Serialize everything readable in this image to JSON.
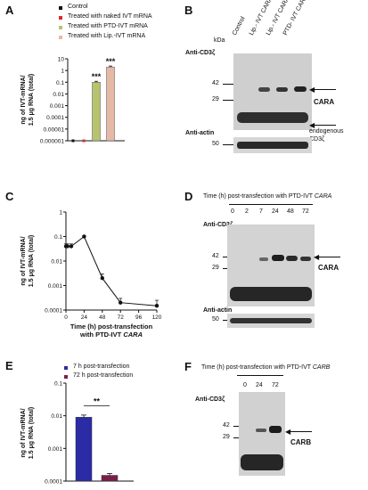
{
  "panels": {
    "A": {
      "label": "A",
      "legend": [
        {
          "text": "Control",
          "color": "#111111"
        },
        {
          "text": "Treated with  naked  IVT mRNA",
          "color": "#e0282a"
        },
        {
          "text": "Treated with PTD-IVT mRNA",
          "color": "#b7c36e"
        },
        {
          "text": "Treated with Lip.-IVT  mRNA",
          "color": "#e6b9a6"
        }
      ],
      "ylabel_line1": "ng of IVT-mRNA/",
      "ylabel_line2": "1.5 μg RNA (total)",
      "significance": "***"
    },
    "B": {
      "label": "B",
      "lanes": [
        "Control",
        "Lip.- IVT CARA",
        "Lip.- IVT CARA",
        "PTD- IVT CARA"
      ],
      "kda_title": "kDa",
      "antibody_top": "Anti-CD3ζ",
      "antibody_bottom": "Anti-actin",
      "markers": [
        "42",
        "29",
        "50"
      ],
      "band_label": "CARA",
      "endogenous_label_line1": "endogenous",
      "endogenous_label_line2": "CD3ζ"
    },
    "C": {
      "label": "C",
      "ylabel_line1": "ng of IVT-mRNA/",
      "ylabel_line2": "1.5 μg RNA (total)",
      "xlabel_line1": "Time  (h)  post-transfection",
      "xlabel_line2": "with PTD-IVT",
      "xlabel_italic": "CARA"
    },
    "D": {
      "label": "D",
      "title": "Time (h) post-transfection with PTD-IVT",
      "title_italic": "CARA",
      "lanes": [
        "0",
        "2",
        "7",
        "24",
        "48",
        "72"
      ],
      "antibody_top": "Anti-CD3ζ",
      "antibody_bottom": "Anti-actin",
      "markers": [
        "42",
        "29",
        "50"
      ],
      "band_label": "CARA"
    },
    "E": {
      "label": "E",
      "legend": [
        {
          "text": "7 h post-transfection",
          "color": "#2b2ba6"
        },
        {
          "text": "72 h post-transfection",
          "color": "#7a1f4a"
        }
      ],
      "ylabel_line1": "ng of IVT-mRNA/",
      "ylabel_line2": "1.5 μg RNA (total)",
      "significance": "**"
    },
    "F": {
      "label": "F",
      "title": "Time (h) post-transfection with PTD-IVT",
      "title_italic": "CARB",
      "lanes": [
        "0",
        "24",
        "72"
      ],
      "antibody_top": "Anti-CD3ζ",
      "markers": [
        "42",
        "29"
      ],
      "band_label": "CARB"
    }
  },
  "chart_data": [
    {
      "panel": "A",
      "type": "bar",
      "categories": [
        "Control",
        "Treated with  naked  IVT mRNA",
        "Treated with PTD-IVT mRNA",
        "Treated with Lip.-IVT  mRNA"
      ],
      "values": [
        1e-06,
        1e-06,
        0.1,
        2
      ],
      "errors": [
        0,
        0,
        0.02,
        0.4
      ],
      "colors": [
        "#111111",
        "#e0282a",
        "#b7c36e",
        "#e6b9a6"
      ],
      "yscale": "log",
      "ylim": [
        1e-06,
        10
      ],
      "yticks": [
        1e-06,
        1e-05,
        0.0001,
        0.001,
        0.01,
        0.1,
        1,
        10
      ],
      "yticklabels": [
        "0.000001",
        "0.00001",
        "0.0001",
        "0.001",
        "0.01",
        "0.1",
        "1",
        "10"
      ],
      "ylabel": "ng of IVT-mRNA/ 1.5 μg RNA (total)",
      "annotations": [
        "***",
        "***"
      ]
    },
    {
      "panel": "C",
      "type": "line",
      "x": [
        0,
        2,
        7,
        24,
        48,
        72,
        120
      ],
      "y": [
        0.04,
        0.04,
        0.04,
        0.1,
        0.002,
        0.0002,
        0.00015
      ],
      "errors": [
        0.01,
        0.01,
        0.01,
        0.01,
        0.001,
        0.0001,
        0.0001
      ],
      "yscale": "log",
      "ylim": [
        0.0001,
        1
      ],
      "yticks": [
        0.0001,
        0.001,
        0.01,
        0.1,
        1
      ],
      "yticklabels": [
        "0.0001",
        "0.001",
        "0.01",
        "0.1",
        "1"
      ],
      "xlim": [
        0,
        120
      ],
      "xticks": [
        0,
        24,
        48,
        72,
        96,
        120
      ],
      "xticklabels": [
        "0",
        "24",
        "48",
        "72",
        "96",
        "120"
      ],
      "xlabel": "Time (h) post-transfection with PTD-IVT CARA",
      "ylabel": "ng of IVT-mRNA/ 1.5 μg RNA (total)"
    },
    {
      "panel": "E",
      "type": "bar",
      "categories": [
        "7 h post-transfection",
        "72 h post-transfection"
      ],
      "values": [
        0.009,
        0.00015
      ],
      "errors": [
        0.0015,
        2e-05
      ],
      "colors": [
        "#2b2ba6",
        "#7a1f4a"
      ],
      "yscale": "log",
      "ylim": [
        0.0001,
        0.1
      ],
      "yticks": [
        0.0001,
        0.001,
        0.01,
        0.1
      ],
      "yticklabels": [
        "0.0001",
        "0.001",
        "0.01",
        "0.1"
      ],
      "ylabel": "ng of IVT-mRNA/ 1.5 μg RNA (total)",
      "annotations": [
        "**"
      ]
    }
  ]
}
